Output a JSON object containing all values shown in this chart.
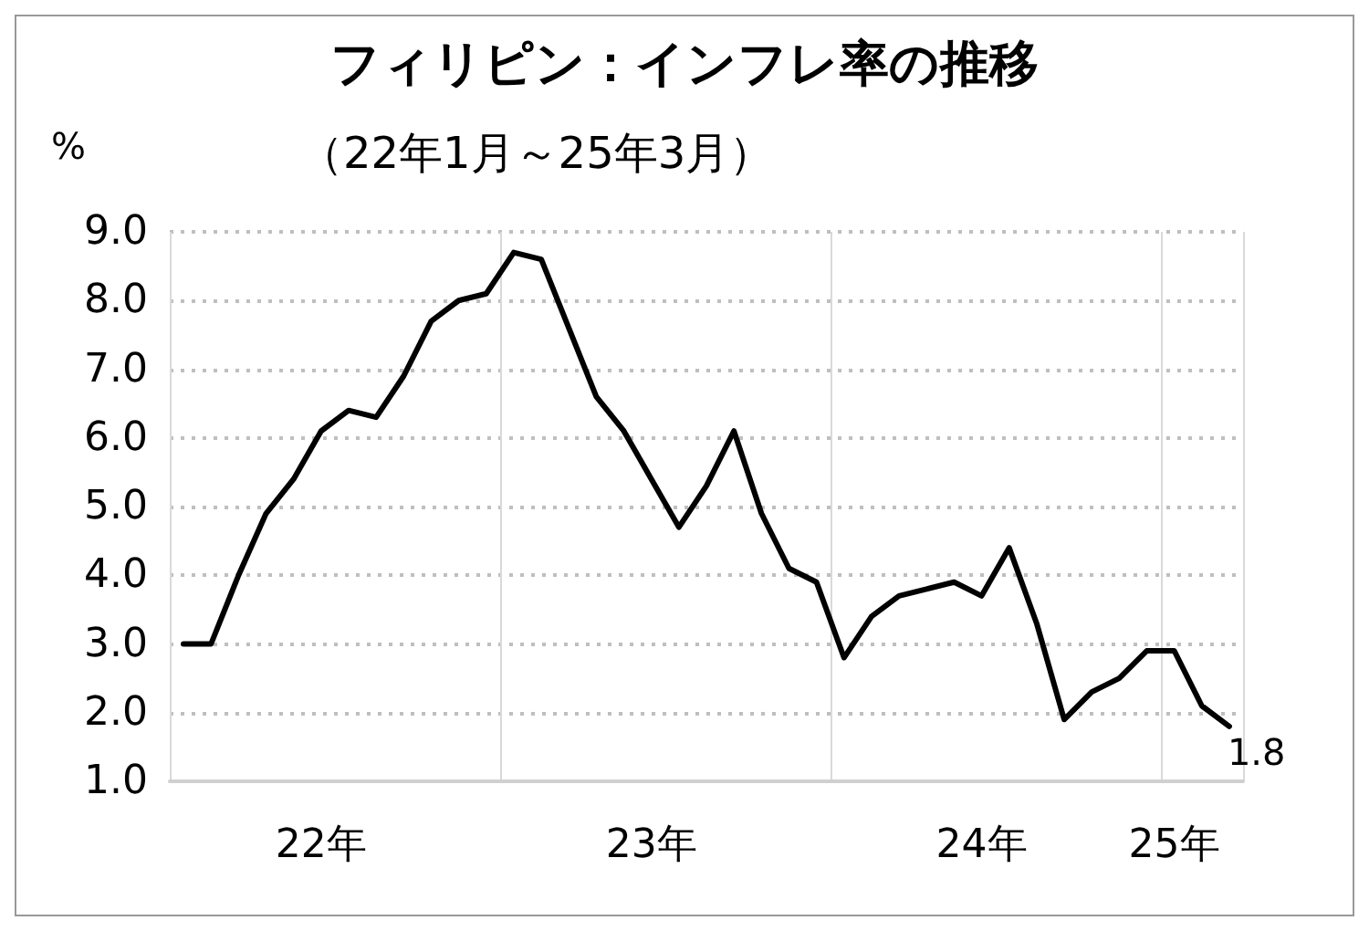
{
  "chart_data": {
    "type": "line",
    "title": "フィリピン：インフレ率の推移",
    "subtitle": "（22年1月～25年3月）",
    "ylabel": "%",
    "categories": [
      null,
      null,
      null,
      null,
      null,
      "22年",
      null,
      null,
      null,
      null,
      null,
      null,
      null,
      null,
      null,
      null,
      null,
      "23年",
      null,
      null,
      null,
      null,
      null,
      null,
      null,
      null,
      null,
      null,
      null,
      "24年",
      null,
      null,
      null,
      null,
      null,
      null,
      "25年",
      null,
      null
    ],
    "series": [
      {
        "color": "#000000",
        "values": [
          3.0,
          3.0,
          4.0,
          4.9,
          5.4,
          6.1,
          6.4,
          6.3,
          6.9,
          7.7,
          8.0,
          8.1,
          8.7,
          8.6,
          7.6,
          6.6,
          6.1,
          5.4,
          4.7,
          5.3,
          6.1,
          4.9,
          4.1,
          3.9,
          2.8,
          3.4,
          3.7,
          3.8,
          3.9,
          3.7,
          4.4,
          3.3,
          1.9,
          2.3,
          2.5,
          2.9,
          2.9,
          2.1,
          1.8
        ],
        "value_labels": [
          null,
          null,
          null,
          null,
          null,
          null,
          null,
          null,
          null,
          null,
          null,
          null,
          null,
          null,
          null,
          null,
          null,
          null,
          null,
          null,
          null,
          null,
          null,
          null,
          null,
          null,
          null,
          null,
          null,
          null,
          null,
          null,
          null,
          null,
          null,
          null,
          null,
          null,
          "1.8"
        ]
      }
    ],
    "ylim": [
      1,
      9
    ],
    "yticks": [
      {
        "value": 1,
        "label": "1.0"
      },
      {
        "value": 2,
        "label": "2.0"
      },
      {
        "value": 3,
        "label": "3.0"
      },
      {
        "value": 4,
        "label": "4.0"
      },
      {
        "value": 5,
        "label": "5.0"
      },
      {
        "value": 6,
        "label": "6.0"
      },
      {
        "value": 7,
        "label": "7.0"
      },
      {
        "value": 8,
        "label": "8.0"
      },
      {
        "value": 9,
        "label": "9.0"
      }
    ],
    "grid": true,
    "marker": "none",
    "line_style": "solid"
  }
}
